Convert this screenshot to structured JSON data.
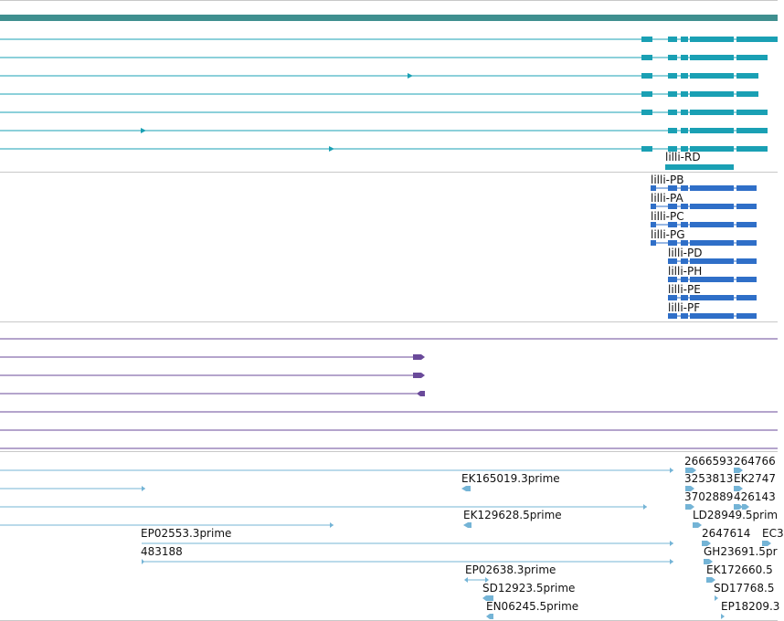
{
  "colors": {
    "band": "#3f8f8f",
    "transcript_teal": "#1aa0b4",
    "transcript_blue": "#2f6fc8",
    "protein_purple": "#6a4a9a",
    "est_lightblue": "#74b4d6",
    "separator": "#c8c8c8"
  },
  "tracks": {
    "transcript_track": {
      "labels": [
        "lilli-RD"
      ]
    },
    "protein_track": {
      "labels": [
        "lilli-PB",
        "lilli-PA",
        "lilli-PC",
        "lilli-PG",
        "lilli-PD",
        "lilli-PH",
        "lilli-PE",
        "lilli-PF"
      ]
    },
    "est_track": {
      "labels": [
        "2666593",
        "264766",
        "EK165019.3prime",
        "3253813",
        "EK2747",
        "3702889",
        "426143",
        "EK129628.5prime",
        "LD28949.5prim",
        "EP02553.3prime",
        "2647614",
        "EC3",
        "483188",
        "GH23691.5pr",
        "EP02638.3prime",
        "EK172660.5",
        "SD12923.5prime",
        "SD17768.5",
        "EN06245.5prime",
        "EP18209.3"
      ]
    }
  }
}
